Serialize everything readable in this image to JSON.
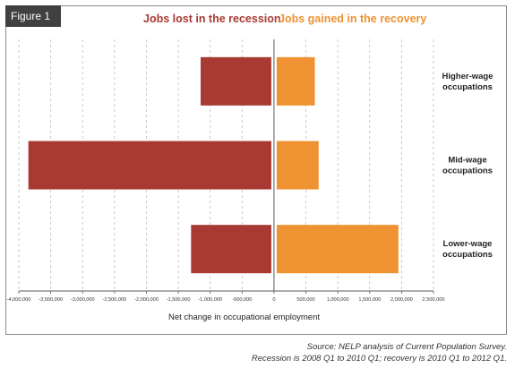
{
  "figure_label": "Figure 1",
  "legend": {
    "lost": "Jobs lost in the recession",
    "gained": "Jobs gained in the recovery"
  },
  "colors": {
    "lost": "#a83a33",
    "gained": "#ef9231",
    "grid": "#bdbdbd",
    "axis": "#595959"
  },
  "chart_data": {
    "type": "bar",
    "orientation": "horizontal",
    "categories": [
      [
        "Higher-wage",
        "occupations"
      ],
      [
        "Mid-wage",
        "occupations"
      ],
      [
        "Lower-wage",
        "occupations"
      ]
    ],
    "series": [
      {
        "name": "Jobs lost in the recession",
        "values": [
          -1150000,
          -3850000,
          -1300000
        ]
      },
      {
        "name": "Jobs gained in the recovery",
        "values": [
          640000,
          700000,
          1950000
        ]
      }
    ],
    "xlim": [
      -4000000,
      2500000
    ],
    "xticks": [
      -4000000,
      -3500000,
      -3000000,
      -2500000,
      -2000000,
      -1500000,
      -1000000,
      -500000,
      0,
      500000,
      1000000,
      1500000,
      2000000,
      2500000
    ],
    "xlabel": "Net change in occupational employment",
    "grid": "vertical dashed",
    "legend_position": "top"
  },
  "source": {
    "line1": "Source: NELP analysis of Current Population Survey.",
    "line2": "Recession is 2008 Q1 to 2010 Q1; recovery is 2010 Q1 to 2012 Q1."
  }
}
